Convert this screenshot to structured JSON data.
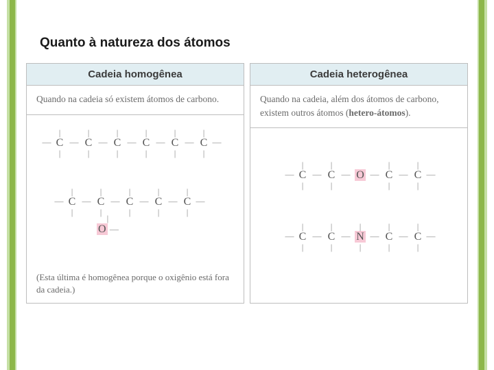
{
  "colors": {
    "bar_light": "#c5e0a5",
    "bar_dark": "#8db74a",
    "header_bg": "#e1eef2",
    "border": "#bdbdbd",
    "text_title": "#1a1a1a",
    "text_body": "#6a6a6a",
    "text_atom": "#555555",
    "highlight": "#f7c9d6"
  },
  "title": "Quanto à natureza dos átomos",
  "left_panel": {
    "header": "Cadeia homogênea",
    "desc": "Quando na cadeia só existem átomos de carbono.",
    "chain1": {
      "atoms": [
        "C",
        "C",
        "C",
        "C",
        "C",
        "C"
      ],
      "highlight_indices": [],
      "vertical_all": true
    },
    "chain2": {
      "atoms": [
        "C",
        "C",
        "C",
        "C",
        "C"
      ],
      "highlight_indices": [],
      "vertical_all": true,
      "pendant": {
        "below_index": 1,
        "label": "O",
        "highlight": true
      }
    },
    "footnote": "(Esta última é homogênea porque o oxigênio está fora da cadeia.)"
  },
  "right_panel": {
    "header": "Cadeia heterogênea",
    "desc_html": "Quando na cadeia, além dos átomos de carbono, existem outros átomos (<b>hetero-átomos</b>).",
    "chain1": {
      "atoms": [
        "C",
        "C",
        "O",
        "C",
        "C"
      ],
      "highlight_indices": [
        2
      ],
      "vertical_skip": [
        2
      ]
    },
    "chain2": {
      "atoms": [
        "C",
        "C",
        "N",
        "C",
        "C"
      ],
      "highlight_indices": [
        2
      ],
      "vertical_skip": []
    }
  }
}
